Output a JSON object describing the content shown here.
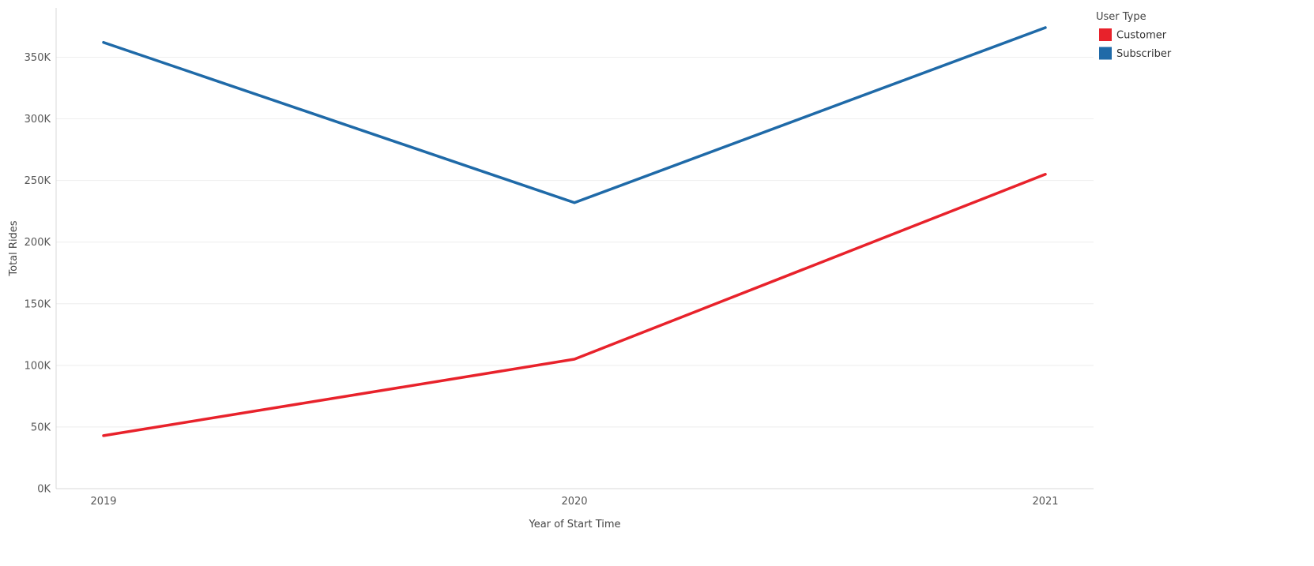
{
  "chart_data": {
    "type": "line",
    "title": "",
    "xlabel": "Year of Start Time",
    "ylabel": "Total Rides",
    "categories": [
      "2019",
      "2020",
      "2021"
    ],
    "series": [
      {
        "name": "Customer",
        "color": "#e8222b",
        "values": [
          43000,
          105000,
          255000
        ]
      },
      {
        "name": "Subscriber",
        "color": "#1f6aa8",
        "values": [
          362000,
          232000,
          374000
        ]
      }
    ],
    "ylim": [
      0,
      390000
    ],
    "yticks": [
      0,
      50000,
      100000,
      150000,
      200000,
      250000,
      300000,
      350000
    ],
    "ytick_labels": [
      "0K",
      "50K",
      "100K",
      "150K",
      "200K",
      "250K",
      "300K",
      "350K"
    ],
    "grid": true,
    "legend": {
      "title": "User Type",
      "position": "top-right"
    }
  }
}
